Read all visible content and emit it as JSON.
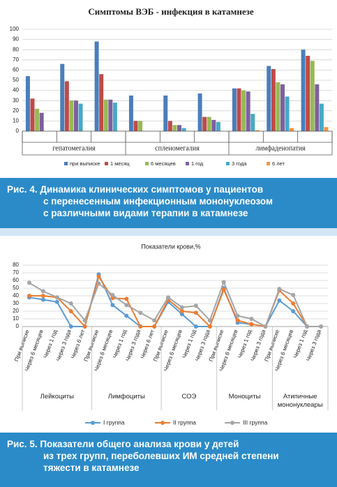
{
  "chart_data": [
    {
      "type": "bar",
      "title": "Симптомы ВЭБ - инфекция в катамнезе",
      "categories": [
        null,
        null,
        null,
        null,
        null,
        null,
        null,
        null,
        null
      ],
      "groups": [
        "гепатомегалия",
        "спленомегалия",
        "лимфаденопатия"
      ],
      "ylim": [
        0,
        100
      ],
      "yticks": [
        0,
        10,
        20,
        30,
        40,
        50,
        60,
        70,
        80,
        90,
        100
      ],
      "grid": true,
      "legend": "bottom",
      "series": [
        {
          "name": "при выписке",
          "color": "#4a7ebb",
          "values": [
            54,
            66,
            88,
            35,
            35,
            37,
            42,
            64,
            80
          ]
        },
        {
          "name": "1 месяц",
          "color": "#be4b48",
          "values": [
            32,
            49,
            56,
            10,
            10,
            14,
            42,
            61,
            74
          ]
        },
        {
          "name": "6 месяцев",
          "color": "#98b954",
          "values": [
            22,
            30,
            31,
            10,
            6,
            14,
            40,
            48,
            69
          ]
        },
        {
          "name": "1 год",
          "color": "#7d60a0",
          "values": [
            18,
            30,
            31,
            0,
            6,
            11,
            39,
            46,
            46
          ]
        },
        {
          "name": "3 года",
          "color": "#46aac5",
          "values": [
            0,
            27,
            28,
            0,
            3,
            9,
            17,
            34,
            27
          ]
        },
        {
          "name": "6 лет",
          "color": "#f69240",
          "values": [
            0,
            0,
            0,
            0,
            0,
            0,
            1,
            3,
            4
          ]
        }
      ]
    },
    {
      "type": "line",
      "title": "Показатели крови,%",
      "groups": [
        {
          "name": "Лейкоциты",
          "categories": [
            "При выписке",
            "Через 6 месяцев",
            "Через 1 год",
            "Через 3 года",
            "Через 6 лет"
          ]
        },
        {
          "name": "Лимфоциты",
          "categories": [
            "При выписке",
            "Через 6 месяцев",
            "Через 1 год",
            "Через 3 года",
            "Через 6 лет"
          ]
        },
        {
          "name": "СОЭ",
          "categories": [
            "При выписке",
            "Через 6 месяцев",
            "Через 1 год",
            "Через 3 года"
          ]
        },
        {
          "name": "Моноциты",
          "categories": [
            "При выписке",
            "Через 6 месяцев",
            "Через 1 год",
            "Через 3 года"
          ]
        },
        {
          "name": "Атипичные мононуклеары",
          "categories": [
            "При выписке",
            "Через 6 месяцев",
            "Через 1 год",
            "Через 3 года"
          ]
        }
      ],
      "ylim": [
        0,
        80
      ],
      "yticks": [
        0,
        10,
        20,
        30,
        40,
        50,
        60,
        70,
        80
      ],
      "grid": true,
      "legend": "bottom",
      "series": [
        {
          "name": "I группа",
          "color": "#5b9bd5",
          "values": [
            38,
            35,
            32,
            0,
            0,
            68,
            28,
            14,
            0,
            0,
            32,
            16,
            0,
            0,
            50,
            5,
            3,
            0,
            34,
            20,
            0,
            0
          ]
        },
        {
          "name": "II группа",
          "color": "#ed7d31",
          "values": [
            40,
            40,
            38,
            20,
            0,
            65,
            37,
            36,
            0,
            0,
            35,
            20,
            18,
            0,
            48,
            8,
            3,
            0,
            47,
            30,
            0,
            0
          ]
        },
        {
          "name": "III группа",
          "color": "#a5a5a5",
          "values": [
            57,
            46,
            38,
            30,
            8,
            56,
            41,
            28,
            18,
            8,
            38,
            25,
            27,
            8,
            58,
            14,
            10,
            0,
            49,
            41,
            0,
            0
          ]
        }
      ]
    }
  ],
  "captions": [
    [
      "Рис. 4. Динамика клинических симптомов у пациентов",
      "с перенесенным инфекционным мононуклеозом",
      "с различными видами терапии в катамнезе"
    ],
    [
      "Рис. 5. Показатели общего анализа крови у детей",
      "из трех групп, переболевших ИМ средней степени",
      "тяжести в катамнезе"
    ]
  ]
}
